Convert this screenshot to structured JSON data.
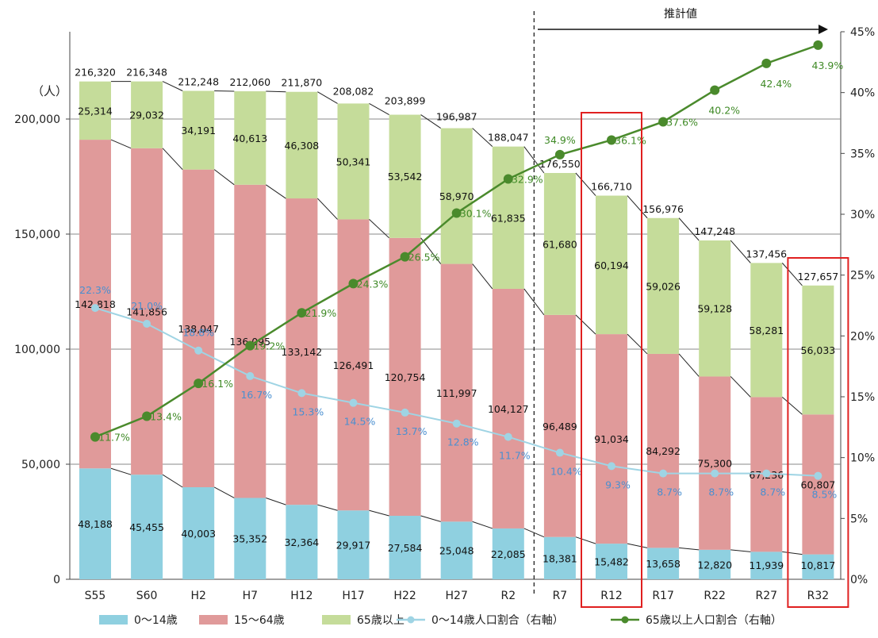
{
  "chart_data": {
    "type": "bar",
    "stacked": true,
    "categories": [
      "S55",
      "S60",
      "H2",
      "H7",
      "H12",
      "H17",
      "H22",
      "H27",
      "R2",
      "R7",
      "R12",
      "R17",
      "R22",
      "R27",
      "R32"
    ],
    "y_left": {
      "unit_label": "（人）",
      "ylim": [
        0,
        250000
      ],
      "ticks": [
        0,
        50000,
        100000,
        150000,
        200000
      ],
      "tick_labels": [
        "0",
        "50,000",
        "100,000",
        "150,000",
        "200,000"
      ]
    },
    "y_right": {
      "ylim": [
        0,
        45
      ],
      "ticks": [
        0,
        5,
        10,
        15,
        20,
        25,
        30,
        35,
        40,
        45
      ],
      "tick_labels": [
        "0%",
        "5%",
        "10%",
        "15%",
        "20%",
        "25%",
        "30%",
        "35%",
        "40%",
        "45%"
      ]
    },
    "series": [
      {
        "name": "0～14歳",
        "type": "bar",
        "axis": "left",
        "color": "#8fd0e0",
        "values": [
          48188,
          45455,
          40003,
          35352,
          32364,
          29917,
          27584,
          25048,
          22085,
          18381,
          15482,
          13658,
          12820,
          11939,
          10817
        ],
        "labels": [
          "48,188",
          "45,455",
          "40,003",
          "35,352",
          "32,364",
          "29,917",
          "27,584",
          "25,048",
          "22,085",
          "18,381",
          "15,482",
          "13,658",
          "12,820",
          "11,939",
          "10,817"
        ]
      },
      {
        "name": "15～64歳",
        "type": "bar",
        "axis": "left",
        "color": "#e09a9a",
        "values": [
          142818,
          141856,
          138047,
          136095,
          133142,
          126491,
          120754,
          111997,
          104127,
          96489,
          91034,
          84292,
          75300,
          67236,
          60807
        ],
        "labels": [
          "142,818",
          "141,856",
          "138,047",
          "136,095",
          "133,142",
          "126,491",
          "120,754",
          "111,997",
          "104,127",
          "96,489",
          "91,034",
          "84,292",
          "75,300",
          "67,236",
          "60,807"
        ]
      },
      {
        "name": "65歳以上",
        "type": "bar",
        "axis": "left",
        "color": "#c5dc9a",
        "values": [
          25314,
          29032,
          34191,
          40613,
          46308,
          50341,
          53542,
          58970,
          61835,
          61680,
          60194,
          59026,
          59128,
          58281,
          56033
        ],
        "labels": [
          "25,314",
          "29,032",
          "34,191",
          "40,613",
          "46,308",
          "50,341",
          "53,542",
          "58,970",
          "61,835",
          "61,680",
          "60,194",
          "59,026",
          "59,128",
          "58,281",
          "56,033"
        ]
      },
      {
        "name": "0～14歳人口割合（右軸）",
        "type": "line",
        "axis": "right",
        "color": "#9fd4e4",
        "label_color": "#4a8fd0",
        "values": [
          22.3,
          21.0,
          18.8,
          16.7,
          15.3,
          14.5,
          13.7,
          12.8,
          11.7,
          10.4,
          9.3,
          8.7,
          8.7,
          8.7,
          8.5
        ],
        "labels": [
          "22.3%",
          "21.0%",
          "18.8%",
          "16.7%",
          "15.3%",
          "14.5%",
          "13.7%",
          "12.8%",
          "11.7%",
          "10.4%",
          "9.3%",
          "8.7%",
          "8.7%",
          "8.7%",
          "8.5%"
        ]
      },
      {
        "name": "65歳以上人口割合（右軸）",
        "type": "line",
        "axis": "right",
        "color": "#4a8a2c",
        "label_color": "#3f8a26",
        "values": [
          11.7,
          13.4,
          16.1,
          19.2,
          21.9,
          24.3,
          26.5,
          30.1,
          32.9,
          34.9,
          36.1,
          37.6,
          40.2,
          42.4,
          43.9
        ],
        "labels": [
          "11.7%",
          "13.4%",
          "16.1%",
          "19.2%",
          "21.9%",
          "24.3%",
          "26.5%",
          "30.1%",
          "32.9%",
          "34.9%",
          "36.1%",
          "37.6%",
          "40.2%",
          "42.4%",
          "43.9%"
        ]
      }
    ],
    "totals": [
      216320,
      216348,
      212248,
      212060,
      211870,
      208082,
      203899,
      196987,
      188047,
      176550,
      166710,
      156976,
      147248,
      137456,
      127657
    ],
    "total_labels": [
      "216,320",
      "216,348",
      "212,248",
      "212,060",
      "211,870",
      "208,082",
      "203,899",
      "196,987",
      "188,047",
      "176,550",
      "166,710",
      "156,976",
      "147,248",
      "137,456",
      "127,657"
    ],
    "projection": {
      "label": "推計値",
      "starts_after": "R2"
    },
    "highlighted": [
      "R12",
      "R32"
    ],
    "highlight_color": "#e02020",
    "grid": "horizontal",
    "legend_position": "bottom"
  }
}
